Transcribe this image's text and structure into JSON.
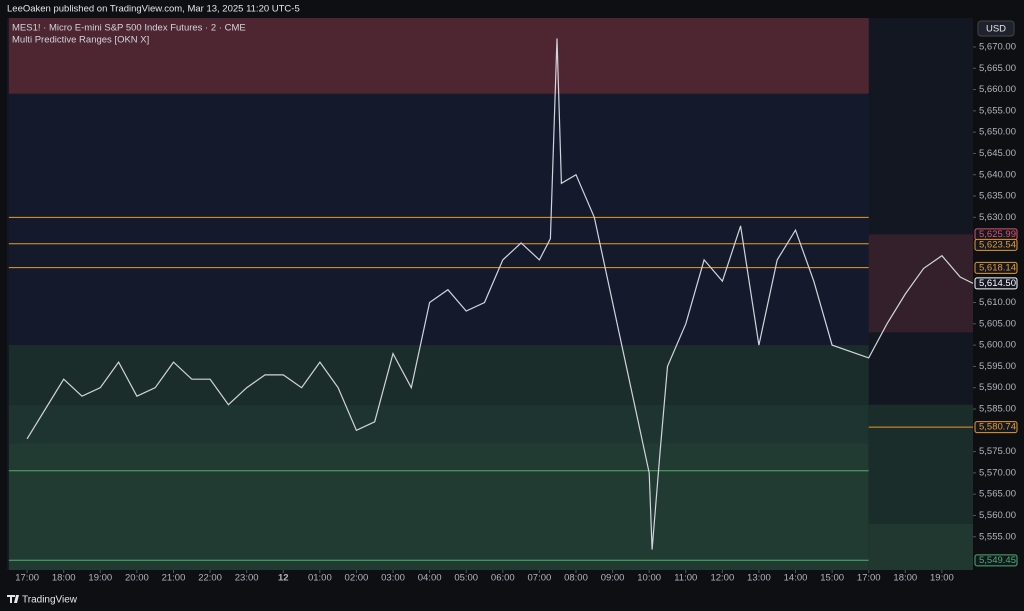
{
  "header": {
    "publisher": "LeeOaken published on TradingView.com, Mar 13, 2025 11:20 UTC-5"
  },
  "footer": {
    "brand": "TradingView"
  },
  "chart_data": {
    "type": "line",
    "title": "MES1! · Micro E-mini S&P 500 Index Futures · 2 · CME",
    "subtitle": "Multi Predictive Ranges [OKN X]",
    "currency": "USD",
    "x": [
      0,
      0.5,
      1,
      1.5,
      2,
      2.5,
      3,
      3.5,
      4,
      4.5,
      5,
      5.5,
      6,
      6.5,
      7,
      7.5,
      8,
      8.5,
      9,
      9.5,
      10,
      10.5,
      11,
      11.5,
      12,
      12.5,
      13,
      13.5,
      14,
      14.3,
      14.48,
      14.6,
      15,
      15.5,
      16,
      16.5,
      17,
      17.08,
      17.3,
      17.5,
      18,
      18.5,
      19,
      19.5,
      20,
      20.5,
      21,
      21.5,
      22,
      23,
      23.5,
      24,
      24.5,
      25,
      25.5,
      25.85
    ],
    "series": [
      {
        "color": "#d1d4dc",
        "values": [
          5578,
          5585,
          5592,
          5588,
          5590,
          5596,
          5588,
          5590,
          5596,
          5592,
          5592,
          5586,
          5590,
          5593,
          5593,
          5590,
          5596,
          5590,
          5580,
          5582,
          5598,
          5590,
          5610,
          5613,
          5608,
          5610,
          5620,
          5624,
          5620,
          5625,
          5672,
          5638,
          5640,
          5630,
          5610,
          5590,
          5570,
          5552,
          5575,
          5595,
          5605,
          5620,
          5615,
          5628,
          5600,
          5620,
          5627,
          5615,
          5600,
          5597,
          5605,
          5612,
          5618,
          5621,
          5616,
          5614.5
        ]
      }
    ],
    "xlim": [
      -0.55,
      25.85
    ],
    "xticks": [
      {
        "value": 0,
        "label": "17:00"
      },
      {
        "value": 1,
        "label": "18:00"
      },
      {
        "value": 2,
        "label": "19:00"
      },
      {
        "value": 3,
        "label": "20:00"
      },
      {
        "value": 4,
        "label": "21:00"
      },
      {
        "value": 5,
        "label": "22:00"
      },
      {
        "value": 6,
        "label": "23:00"
      },
      {
        "value": 7,
        "label": "12"
      },
      {
        "value": 8,
        "label": "01:00"
      },
      {
        "value": 9,
        "label": "02:00"
      },
      {
        "value": 10,
        "label": "03:00"
      },
      {
        "value": 11,
        "label": "04:00"
      },
      {
        "value": 12,
        "label": "05:00"
      },
      {
        "value": 13,
        "label": "06:00"
      },
      {
        "value": 14,
        "label": "07:00"
      },
      {
        "value": 15,
        "label": "08:00"
      },
      {
        "value": 16,
        "label": "09:00"
      },
      {
        "value": 17,
        "label": "10:00"
      },
      {
        "value": 18,
        "label": "11:00"
      },
      {
        "value": 19,
        "label": "12:00"
      },
      {
        "value": 20,
        "label": "13:00"
      },
      {
        "value": 21,
        "label": "14:00"
      },
      {
        "value": 22,
        "label": "15:00"
      },
      {
        "value": 23,
        "label": "17:00"
      },
      {
        "value": 24,
        "label": "18:00"
      },
      {
        "value": 25,
        "label": "19:00"
      }
    ],
    "ylim": [
      5547.2,
      5676.8
    ],
    "yticks": [
      {
        "value": 5555,
        "label": "5,555.00"
      },
      {
        "value": 5560,
        "label": "5,560.00"
      },
      {
        "value": 5565,
        "label": "5,565.00"
      },
      {
        "value": 5570,
        "label": "5,570.00"
      },
      {
        "value": 5575,
        "label": "5,575.00"
      },
      {
        "value": 5585,
        "label": "5,585.00"
      },
      {
        "value": 5590,
        "label": "5,590.00"
      },
      {
        "value": 5595,
        "label": "5,595.00"
      },
      {
        "value": 5600,
        "label": "5,600.00"
      },
      {
        "value": 5605,
        "label": "5,605.00"
      },
      {
        "value": 5610,
        "label": "5,610.00"
      },
      {
        "value": 5630,
        "label": "5,630.00"
      },
      {
        "value": 5635,
        "label": "5,635.00"
      },
      {
        "value": 5640,
        "label": "5,640.00"
      },
      {
        "value": 5645,
        "label": "5,645.00"
      },
      {
        "value": 5650,
        "label": "5,650.00"
      },
      {
        "value": 5655,
        "label": "5,655.00"
      },
      {
        "value": 5660,
        "label": "5,660.00"
      },
      {
        "value": 5665,
        "label": "5,665.00"
      },
      {
        "value": 5670,
        "label": "5,670.00"
      }
    ],
    "zones": [
      {
        "x0": -0.5,
        "x1": 23,
        "y0": 5659,
        "y1": 5676.8,
        "color": "#4e2631"
      },
      {
        "x0": -0.5,
        "x1": 23,
        "y0": 5600,
        "y1": 5659,
        "color": "#141a2b"
      },
      {
        "x0": -0.5,
        "x1": 23,
        "y0": 5586,
        "y1": 5600,
        "color": "#1b2d2b"
      },
      {
        "x0": -0.5,
        "x1": 23,
        "y0": 5577,
        "y1": 5586,
        "color": "#1e3430"
      },
      {
        "x0": -0.5,
        "x1": 23,
        "y0": 5547.2,
        "y1": 5577,
        "color": "#213a32"
      },
      {
        "x0": 23,
        "x1": 25.85,
        "y0": 5603,
        "y1": 5626,
        "color": "#34202b"
      },
      {
        "x0": 23,
        "x1": 25.85,
        "y0": 5558,
        "y1": 5586,
        "color": "#1a2d2a"
      },
      {
        "x0": 23,
        "x1": 25.85,
        "y0": 5547.2,
        "y1": 5558,
        "color": "#20382f"
      }
    ],
    "levels": [
      {
        "x0": -0.5,
        "x1": 23,
        "y": 5630,
        "color": "#e89a2c"
      },
      {
        "x0": -0.5,
        "x1": 23,
        "y": 5623.8,
        "color": "#e89a2c"
      },
      {
        "x0": -0.5,
        "x1": 23,
        "y": 5618.2,
        "color": "#e89a2c"
      },
      {
        "x0": -0.5,
        "x1": 23,
        "y": 5570.5,
        "color": "#4caf6a"
      },
      {
        "x0": -0.5,
        "x1": 23,
        "y": 5549.5,
        "color": "#4caf6a"
      },
      {
        "x0": 23,
        "x1": 25.85,
        "y": 5580.74,
        "color": "#e89a2c"
      }
    ],
    "price_labels": [
      {
        "value": 5625.99,
        "label": "5,625.99",
        "color": "#e0526a"
      },
      {
        "value": 5623.54,
        "label": "5,623.54",
        "color": "#e89a2c"
      },
      {
        "value": 5618.14,
        "label": "5,618.14",
        "color": "#e89a2c"
      },
      {
        "value": 5614.5,
        "label": "5,614.50",
        "color": "#ffffff"
      },
      {
        "value": 5580.74,
        "label": "5,580.74",
        "color": "#e89a2c"
      },
      {
        "value": 5549.45,
        "label": "5,549.45",
        "color": "#4caf6a"
      }
    ]
  }
}
